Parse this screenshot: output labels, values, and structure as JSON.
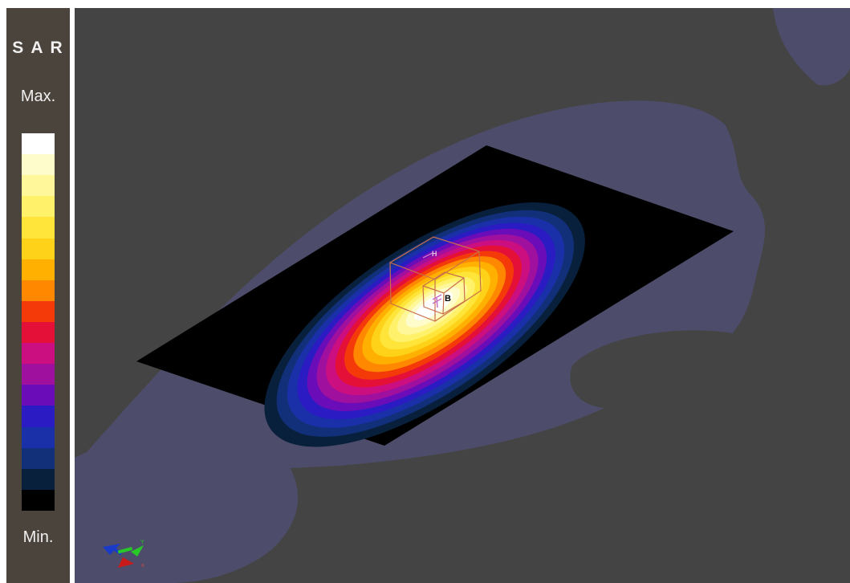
{
  "legend": {
    "title": "S A R",
    "max_label": "Max.",
    "min_label": "Min.",
    "colors": [
      "#ffffff",
      "#fffccc",
      "#fff79a",
      "#fff26a",
      "#ffe53a",
      "#ffd21a",
      "#ffb000",
      "#ff8800",
      "#f53a0a",
      "#e51038",
      "#cc0f80",
      "#a0109e",
      "#6a0cb8",
      "#2a1cc2",
      "#1a30a8",
      "#12307a",
      "#08203c",
      "#000000"
    ]
  },
  "scene": {
    "background_color": "#444444",
    "probe_labels": {
      "h_field": "H",
      "b_field": "B"
    },
    "axes": {
      "x": "x",
      "y": "Y",
      "z": "z"
    }
  }
}
